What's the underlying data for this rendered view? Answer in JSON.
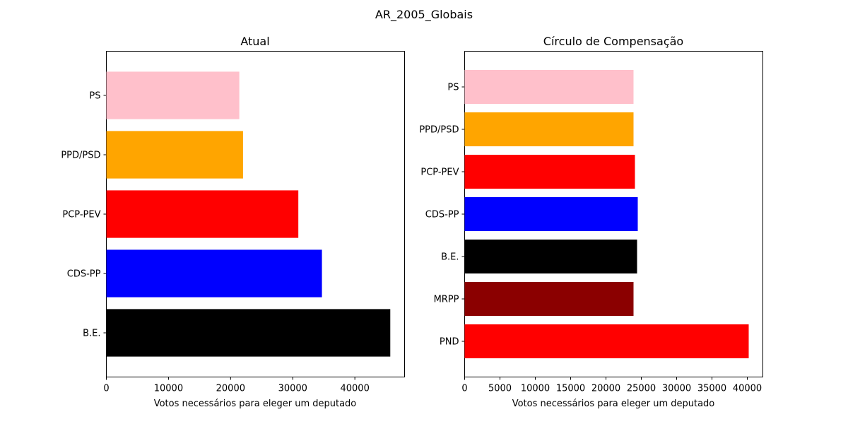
{
  "figure": {
    "suptitle": "AR_2005_Globais"
  },
  "chart_data": [
    {
      "type": "bar",
      "orientation": "horizontal",
      "title": "Atual",
      "xlabel": "Votos necessários para eleger um deputado",
      "ylabel": "",
      "xlim": [
        0,
        48000
      ],
      "xticks": [
        0,
        10000,
        20000,
        30000,
        40000
      ],
      "xtick_labels": [
        "0",
        "10000",
        "20000",
        "30000",
        "40000"
      ],
      "grid": false,
      "categories": [
        "PS",
        "PPD/PSD",
        "PCP-PEV",
        "CDS-PP",
        "B.E."
      ],
      "values": [
        21400,
        22000,
        30900,
        34700,
        45700
      ],
      "colors": [
        "#ffc0cb",
        "#ffa500",
        "#ff0000",
        "#0000ff",
        "#000000"
      ]
    },
    {
      "type": "bar",
      "orientation": "horizontal",
      "title": "Círculo de Compensação",
      "xlabel": "Votos necessários para eleger um deputado",
      "ylabel": "",
      "xlim": [
        0,
        42200
      ],
      "xticks": [
        0,
        5000,
        10000,
        15000,
        20000,
        25000,
        30000,
        35000,
        40000
      ],
      "xtick_labels": [
        "0",
        "5000",
        "10000",
        "15000",
        "20000",
        "25000",
        "30000",
        "35000",
        "40000"
      ],
      "grid": false,
      "categories": [
        "PS",
        "PPD/PSD",
        "PCP-PEV",
        "CDS-PP",
        "B.E.",
        "MRPP",
        "PND"
      ],
      "values": [
        23900,
        23900,
        24100,
        24500,
        24400,
        23900,
        40200
      ],
      "colors": [
        "#ffc0cb",
        "#ffa500",
        "#ff0000",
        "#0000ff",
        "#000000",
        "#8b0000",
        "#ff0000"
      ]
    }
  ]
}
